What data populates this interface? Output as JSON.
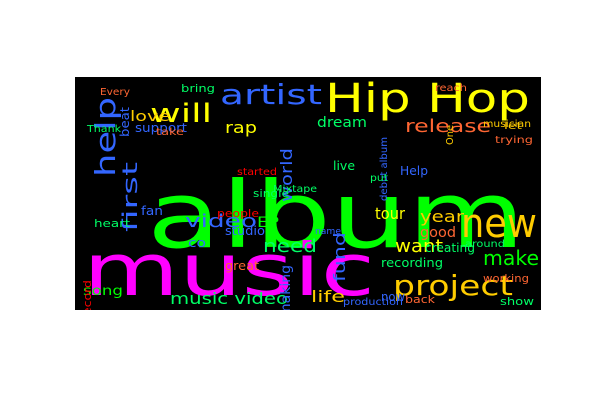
{
  "background_color": "#000000",
  "words": [
    {
      "text": "album",
      "color": "#00ff00"
    },
    {
      "text": "music",
      "color": "#ff00ff"
    },
    {
      "text": "Hip Hop",
      "color": "#ffff00"
    },
    {
      "text": "artist",
      "color": "#3366ff"
    },
    {
      "text": "new",
      "color": "#ffcc00"
    },
    {
      "text": "help",
      "color": "#3366ff"
    },
    {
      "text": "will",
      "color": "#ffff00"
    },
    {
      "text": "project",
      "color": "#ffcc00"
    },
    {
      "text": "first",
      "color": "#3366ff"
    },
    {
      "text": "make",
      "color": "#00ff00"
    },
    {
      "text": "video",
      "color": "#3366ff"
    },
    {
      "text": "want",
      "color": "#ffff00"
    },
    {
      "text": "need",
      "color": "#00ff66"
    },
    {
      "text": "release",
      "color": "#ff6633"
    },
    {
      "text": "fund",
      "color": "#3366ff"
    },
    {
      "text": "world",
      "color": "#3366ff"
    },
    {
      "text": "year",
      "color": "#ffcc00"
    },
    {
      "text": "life",
      "color": "#ffcc00"
    },
    {
      "text": "music video",
      "color": "#00ff66"
    },
    {
      "text": "making",
      "color": "#3366ff"
    },
    {
      "text": "love",
      "color": "#ffcc00"
    },
    {
      "text": "rap",
      "color": "#ffff00"
    },
    {
      "text": "dream",
      "color": "#00ff66"
    },
    {
      "text": "tour",
      "color": "#ffff00"
    },
    {
      "text": "good",
      "color": "#ff6633"
    },
    {
      "text": "EP",
      "color": "#00ff00"
    },
    {
      "text": "song",
      "color": "#00ff00"
    },
    {
      "text": "recording",
      "color": "#00ff66"
    },
    {
      "text": "support",
      "color": "#3366ff"
    },
    {
      "text": "studio",
      "color": "#3366ff"
    },
    {
      "text": "single",
      "color": "#00ff66"
    },
    {
      "text": "record",
      "color": "#ff0000"
    },
    {
      "text": "fan",
      "color": "#3366ff"
    },
    {
      "text": "beat",
      "color": "#3366ff"
    },
    {
      "text": "people",
      "color": "#ff0000"
    },
    {
      "text": "heart",
      "color": "#00ff66"
    },
    {
      "text": "live",
      "color": "#00ff66"
    },
    {
      "text": "now",
      "color": "#3366ff"
    },
    {
      "text": "Help",
      "color": "#3366ff"
    },
    {
      "text": "creating",
      "color": "#00ff66"
    },
    {
      "text": "working",
      "color": "#ff6633"
    },
    {
      "text": "great",
      "color": "#ff6633"
    },
    {
      "text": "musician",
      "color": "#ffcc00"
    },
    {
      "text": "show",
      "color": "#00ff66"
    },
    {
      "text": "back",
      "color": "#ff6633"
    },
    {
      "text": "Thank",
      "color": "#00ff66"
    },
    {
      "text": "bring",
      "color": "#00ff66"
    },
    {
      "text": "take",
      "color": "#ff6633"
    },
    {
      "text": "started",
      "color": "#ff0000"
    },
    {
      "text": "Mixtape",
      "color": "#00ff66"
    },
    {
      "text": "let",
      "color": "#ffcc00"
    },
    {
      "text": "reach",
      "color": "#ff6633"
    },
    {
      "text": "around",
      "color": "#00ff66"
    },
    {
      "text": "debut album",
      "color": "#3366ff"
    },
    {
      "text": "production",
      "color": "#3366ff"
    },
    {
      "text": "co",
      "color": "#3366ff"
    },
    {
      "text": "put",
      "color": "#00ff66"
    },
    {
      "text": "name",
      "color": "#3366ff"
    },
    {
      "text": "Every",
      "color": "#ff6633"
    },
    {
      "text": "trying",
      "color": "#ff6633"
    },
    {
      "text": "One",
      "color": "#ffcc00"
    }
  ]
}
